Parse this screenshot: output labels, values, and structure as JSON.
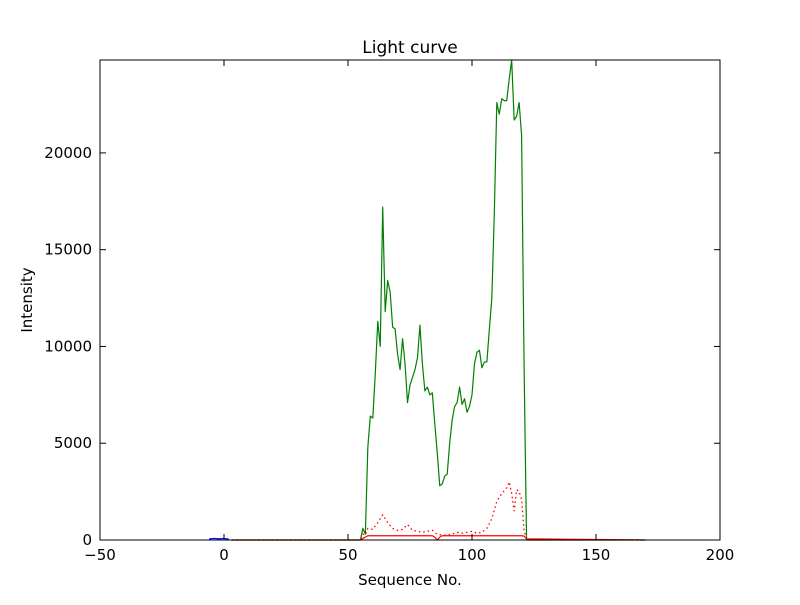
{
  "chart_data": {
    "type": "line",
    "title": "Light curve",
    "xlabel": "Sequence No.",
    "ylabel": "Intensity",
    "xlim": [
      -50,
      200
    ],
    "ylim": [
      0,
      24800
    ],
    "xticks": [
      -50,
      0,
      50,
      100,
      150,
      200
    ],
    "yticks": [
      0,
      5000,
      10000,
      15000,
      20000
    ],
    "xtick_labels": [
      "−50",
      "0",
      "50",
      "100",
      "150",
      "200"
    ],
    "ytick_labels": [
      "0",
      "5000",
      "10000",
      "15000",
      "20000"
    ],
    "grid": false,
    "legend": "none",
    "series": [
      {
        "color": "#008000",
        "linestyle": "solid",
        "x": [
          3,
          55,
          56,
          57,
          58,
          59,
          60,
          61,
          62,
          63,
          64,
          65,
          66,
          67,
          68,
          69,
          70,
          71,
          72,
          73,
          74,
          75,
          76,
          77,
          78,
          79,
          80,
          81,
          82,
          83,
          84,
          85,
          86,
          87,
          88,
          89,
          90,
          91,
          92,
          93,
          94,
          95,
          96,
          97,
          98,
          99,
          100,
          101,
          102,
          103,
          104,
          105,
          106,
          107,
          108,
          109,
          110,
          111,
          112,
          113,
          114,
          115,
          116,
          117,
          118,
          119,
          120,
          121,
          122,
          170
        ],
        "y": [
          0,
          0,
          600,
          300,
          4800,
          6400,
          6300,
          8600,
          11300,
          10000,
          17200,
          11800,
          13400,
          12800,
          11000,
          10900,
          9600,
          8800,
          10400,
          9100,
          7100,
          8000,
          8400,
          8800,
          9400,
          11100,
          9100,
          7700,
          7900,
          7500,
          7600,
          6000,
          4500,
          2800,
          2900,
          3300,
          3400,
          5000,
          6200,
          6900,
          7100,
          7900,
          7000,
          7300,
          6600,
          6900,
          7500,
          9100,
          9700,
          9800,
          8900,
          9200,
          9200,
          10900,
          12500,
          16900,
          22600,
          22000,
          22800,
          22700,
          22700,
          23800,
          24800,
          21700,
          21900,
          22600,
          20900,
          9000,
          0,
          0
        ]
      },
      {
        "color": "#ff0000",
        "linestyle": "dotted",
        "x": [
          3,
          55,
          56,
          57,
          58,
          60,
          62,
          64,
          66,
          68,
          70,
          72,
          74,
          76,
          78,
          80,
          82,
          84,
          86,
          88,
          90,
          92,
          94,
          96,
          98,
          100,
          102,
          104,
          106,
          108,
          110,
          112,
          114,
          115,
          116,
          117,
          118,
          119,
          120,
          121,
          122,
          170
        ],
        "y": [
          0,
          0,
          300,
          250,
          600,
          550,
          900,
          1300,
          900,
          600,
          500,
          550,
          800,
          500,
          450,
          400,
          450,
          500,
          300,
          250,
          250,
          300,
          400,
          350,
          400,
          450,
          350,
          400,
          600,
          1100,
          2000,
          2400,
          2700,
          3000,
          2400,
          1500,
          2600,
          2500,
          2100,
          500,
          0,
          0
        ]
      },
      {
        "color": "#ff0000",
        "linestyle": "solid",
        "x": [
          3,
          55,
          56,
          57,
          58,
          60,
          70,
          80,
          84,
          85,
          86,
          87,
          88,
          100,
          110,
          120,
          121,
          122,
          170
        ],
        "y": [
          0,
          0,
          80,
          150,
          220,
          220,
          220,
          220,
          220,
          150,
          0,
          150,
          220,
          220,
          220,
          220,
          200,
          60,
          0
        ]
      },
      {
        "color": "#0000ff",
        "linestyle": "solid",
        "x": [
          -6,
          -4,
          -2,
          0,
          2
        ],
        "y": [
          50,
          80,
          60,
          80,
          40
        ]
      }
    ]
  }
}
